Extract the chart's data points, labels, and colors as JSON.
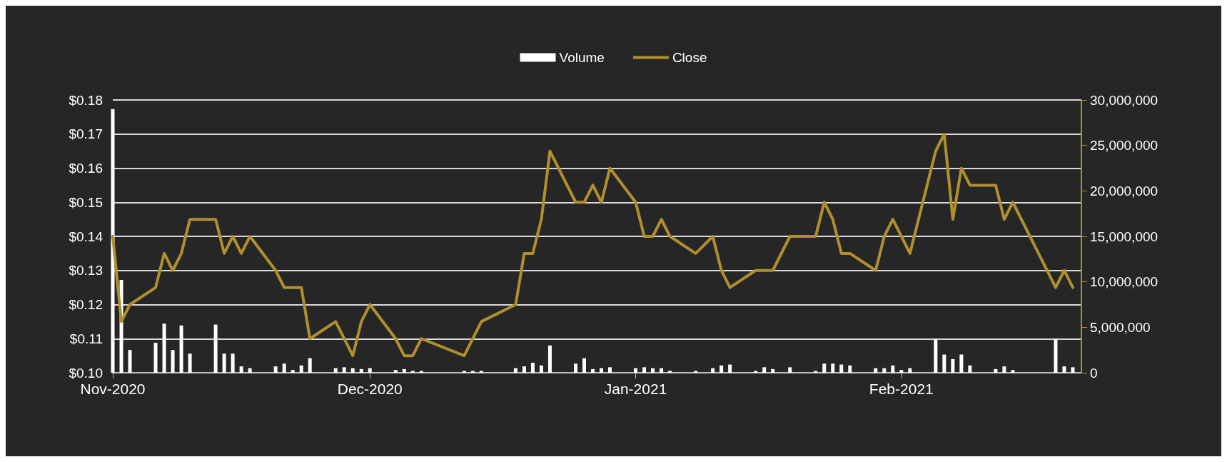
{
  "chart_data": {
    "type": "line",
    "xlim": [
      "2020-11-01",
      "2021-02-22"
    ],
    "xticks": [
      {
        "value": "2020-11-01",
        "label": "Nov-2020"
      },
      {
        "value": "2020-12-01",
        "label": "Dec-2020"
      },
      {
        "value": "2021-01-01",
        "label": "Jan-2021"
      },
      {
        "value": "2021-02-01",
        "label": "Feb-2021"
      }
    ],
    "ylim": [
      0.1,
      0.18
    ],
    "yticks": [
      {
        "value": 0.1,
        "label": "$0.10"
      },
      {
        "value": 0.11,
        "label": "$0.11"
      },
      {
        "value": 0.12,
        "label": "$0.12"
      },
      {
        "value": 0.13,
        "label": "$0.13"
      },
      {
        "value": 0.14,
        "label": "$0.14"
      },
      {
        "value": 0.15,
        "label": "$0.15"
      },
      {
        "value": 0.16,
        "label": "$0.16"
      },
      {
        "value": 0.17,
        "label": "$0.17"
      },
      {
        "value": 0.18,
        "label": "$0.18"
      }
    ],
    "y2lim": [
      0,
      30000000
    ],
    "y2ticks": [
      {
        "value": 0,
        "label": "0"
      },
      {
        "value": 5000000,
        "label": "5,000,000"
      },
      {
        "value": 10000000,
        "label": "10,000,000"
      },
      {
        "value": 15000000,
        "label": "15,000,000"
      },
      {
        "value": 20000000,
        "label": "20,000,000"
      },
      {
        "value": 25000000,
        "label": "25,000,000"
      },
      {
        "value": 30000000,
        "label": "30,000,000"
      }
    ],
    "grid": "y",
    "legend": "top",
    "marker": "none",
    "line_style": "solid",
    "series": [
      {
        "name": "Volume",
        "type": "bar",
        "axis": "y2",
        "color": "#ffffff",
        "x": [
          "2020-11-01",
          "2020-11-02",
          "2020-11-03",
          "2020-11-06",
          "2020-11-07",
          "2020-11-08",
          "2020-11-09",
          "2020-11-10",
          "2020-11-13",
          "2020-11-14",
          "2020-11-15",
          "2020-11-16",
          "2020-11-17",
          "2020-11-20",
          "2020-11-21",
          "2020-11-22",
          "2020-11-23",
          "2020-11-24",
          "2020-11-27",
          "2020-11-28",
          "2020-11-29",
          "2020-11-30",
          "2020-12-01",
          "2020-12-04",
          "2020-12-05",
          "2020-12-06",
          "2020-12-07",
          "2020-12-12",
          "2020-12-13",
          "2020-12-14",
          "2020-12-18",
          "2020-12-19",
          "2020-12-20",
          "2020-12-21",
          "2020-12-22",
          "2020-12-25",
          "2020-12-26",
          "2020-12-27",
          "2020-12-28",
          "2020-12-29",
          "2021-01-01",
          "2021-01-02",
          "2021-01-03",
          "2021-01-04",
          "2021-01-05",
          "2021-01-08",
          "2021-01-10",
          "2021-01-11",
          "2021-01-12",
          "2021-01-15",
          "2021-01-16",
          "2021-01-17",
          "2021-01-19",
          "2021-01-22",
          "2021-01-23",
          "2021-01-24",
          "2021-01-25",
          "2021-01-26",
          "2021-01-29",
          "2021-01-30",
          "2021-01-31",
          "2021-02-01",
          "2021-02-02",
          "2021-02-05",
          "2021-02-06",
          "2021-02-07",
          "2021-02-08",
          "2021-02-09",
          "2021-02-12",
          "2021-02-13",
          "2021-02-14",
          "2021-02-19",
          "2021-02-20",
          "2021-02-21"
        ],
        "values": [
          29000000,
          10200000,
          2500000,
          3300000,
          5400000,
          2500000,
          5200000,
          2100000,
          5300000,
          2100000,
          2100000,
          700000,
          500000,
          700000,
          1000000,
          300000,
          800000,
          1600000,
          500000,
          600000,
          500000,
          400000,
          500000,
          300000,
          400000,
          200000,
          200000,
          200000,
          200000,
          200000,
          500000,
          700000,
          1100000,
          800000,
          3000000,
          1000000,
          1600000,
          400000,
          500000,
          600000,
          500000,
          600000,
          500000,
          500000,
          200000,
          200000,
          500000,
          800000,
          900000,
          200000,
          600000,
          400000,
          600000,
          200000,
          1000000,
          1000000,
          900000,
          800000,
          500000,
          500000,
          800000,
          300000,
          500000,
          3700000,
          2000000,
          1500000,
          2000000,
          800000,
          400000,
          700000,
          300000,
          3700000,
          700000,
          600000
        ]
      },
      {
        "name": "Close",
        "color": "#b08f2e",
        "x": [
          "2020-11-01",
          "2020-11-02",
          "2020-11-03",
          "2020-11-06",
          "2020-11-07",
          "2020-11-08",
          "2020-11-09",
          "2020-11-10",
          "2020-11-13",
          "2020-11-14",
          "2020-11-15",
          "2020-11-16",
          "2020-11-17",
          "2020-11-20",
          "2020-11-21",
          "2020-11-23",
          "2020-11-24",
          "2020-11-27",
          "2020-11-29",
          "2020-11-30",
          "2020-12-01",
          "2020-12-04",
          "2020-12-05",
          "2020-12-06",
          "2020-12-07",
          "2020-12-12",
          "2020-12-14",
          "2020-12-18",
          "2020-12-19",
          "2020-12-20",
          "2020-12-21",
          "2020-12-22",
          "2020-12-25",
          "2020-12-26",
          "2020-12-27",
          "2020-12-28",
          "2020-12-29",
          "2021-01-01",
          "2021-01-02",
          "2021-01-03",
          "2021-01-04",
          "2021-01-05",
          "2021-01-08",
          "2021-01-10",
          "2021-01-11",
          "2021-01-12",
          "2021-01-15",
          "2021-01-17",
          "2021-01-19",
          "2021-01-22",
          "2021-01-23",
          "2021-01-24",
          "2021-01-25",
          "2021-01-26",
          "2021-01-29",
          "2021-01-30",
          "2021-01-31",
          "2021-02-02",
          "2021-02-05",
          "2021-02-06",
          "2021-02-07",
          "2021-02-08",
          "2021-02-09",
          "2021-02-12",
          "2021-02-13",
          "2021-02-14",
          "2021-02-19",
          "2021-02-20",
          "2021-02-21"
        ],
        "values": [
          0.14,
          0.115,
          0.12,
          0.125,
          0.135,
          0.13,
          0.135,
          0.145,
          0.145,
          0.135,
          0.14,
          0.135,
          0.14,
          0.13,
          0.125,
          0.125,
          0.11,
          0.115,
          0.105,
          0.115,
          0.12,
          0.11,
          0.105,
          0.105,
          0.11,
          0.105,
          0.115,
          0.12,
          0.135,
          0.135,
          0.145,
          0.165,
          0.15,
          0.15,
          0.155,
          0.15,
          0.16,
          0.15,
          0.14,
          0.14,
          0.145,
          0.14,
          0.135,
          0.14,
          0.13,
          0.125,
          0.13,
          0.13,
          0.14,
          0.14,
          0.15,
          0.145,
          0.135,
          0.135,
          0.13,
          0.14,
          0.145,
          0.135,
          0.165,
          0.17,
          0.145,
          0.16,
          0.155,
          0.155,
          0.145,
          0.15,
          0.125,
          0.13,
          0.125
        ]
      }
    ]
  }
}
